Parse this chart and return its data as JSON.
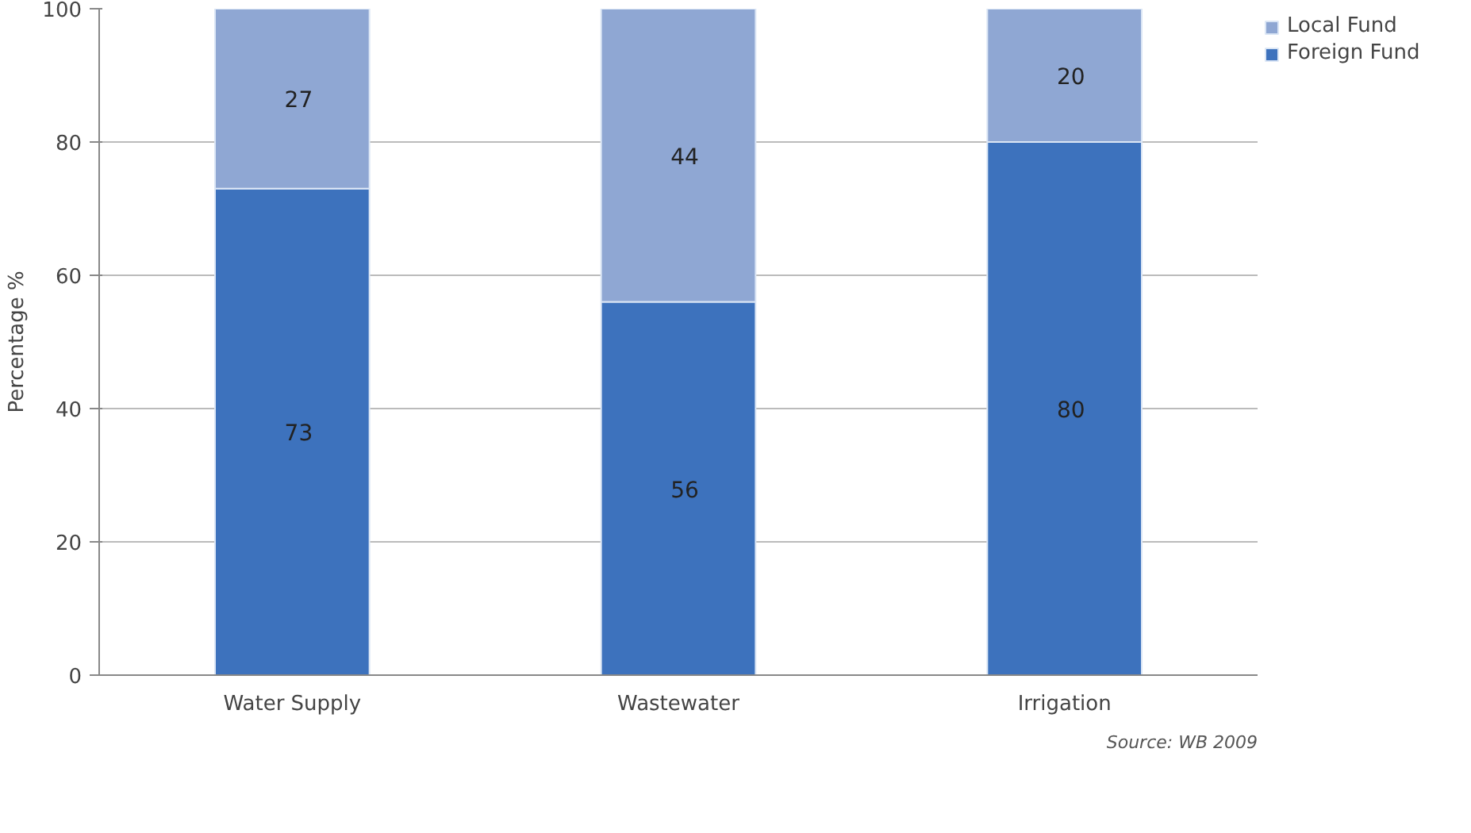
{
  "chart_data": {
    "type": "bar",
    "stacked": true,
    "ylabel": "Percentage %",
    "categories": [
      "Water Supply",
      "Wastewater",
      "Irrigation"
    ],
    "series": [
      {
        "name": "Foreign Fund",
        "color": "#3d72bd",
        "values": [
          73,
          56,
          80
        ]
      },
      {
        "name": "Local Fund",
        "color": "#8fa7d3",
        "values": [
          27,
          44,
          20
        ]
      }
    ],
    "ylim": [
      0,
      100
    ],
    "yticks": [
      0,
      20,
      40,
      60,
      80,
      100
    ],
    "grid": "y",
    "legend": "top right",
    "data_labels": true,
    "annotations": [
      "Source: WB 2009"
    ]
  }
}
